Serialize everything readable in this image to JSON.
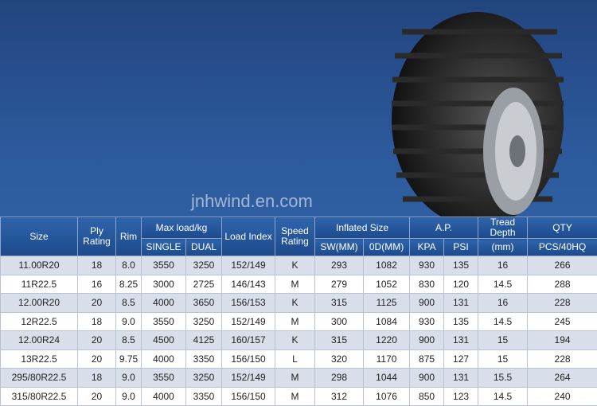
{
  "watermark": "jnhwind.en.com",
  "table": {
    "header": {
      "size": "Size",
      "ply": "Ply Rating",
      "rim": "Rim",
      "max_load": "Max load/kg",
      "single": "SINGLE",
      "dual": "DUAL",
      "load_index": "Load Index",
      "speed": "Speed Rating",
      "inflated": "Inflated Size",
      "sw": "SW(MM)",
      "od": "0D(MM)",
      "ap": "A.P.",
      "kpa": "KPA",
      "psi": "PSI",
      "tread": "Tread Depth",
      "tread_unit": "(mm)",
      "qty": "QTY",
      "qty_unit": "PCS/40HQ"
    },
    "rows": [
      [
        "11.00R20",
        "18",
        "8.0",
        "3550",
        "3250",
        "152/149",
        "K",
        "293",
        "1082",
        "930",
        "135",
        "16",
        "266"
      ],
      [
        "11R22.5",
        "16",
        "8.25",
        "3000",
        "2725",
        "146/143",
        "M",
        "279",
        "1052",
        "830",
        "120",
        "14.5",
        "288"
      ],
      [
        "12.00R20",
        "20",
        "8.5",
        "4000",
        "3650",
        "156/153",
        "K",
        "315",
        "1125",
        "900",
        "131",
        "16",
        "228"
      ],
      [
        "12R22.5",
        "18",
        "9.0",
        "3550",
        "3250",
        "152/149",
        "M",
        "300",
        "1084",
        "930",
        "135",
        "14.5",
        "245"
      ],
      [
        "12.00R24",
        "20",
        "8.5",
        "4500",
        "4125",
        "160/157",
        "K",
        "315",
        "1220",
        "900",
        "131",
        "15",
        "194"
      ],
      [
        "13R22.5",
        "20",
        "9.75",
        "4000",
        "3350",
        "156/150",
        "L",
        "320",
        "1170",
        "875",
        "127",
        "15",
        "228"
      ],
      [
        "295/80R22.5",
        "18",
        "9.0",
        "3550",
        "3250",
        "152/149",
        "M",
        "298",
        "1044",
        "900",
        "131",
        "15.5",
        "264"
      ],
      [
        "315/80R22.5",
        "20",
        "9.0",
        "4000",
        "3350",
        "156/150",
        "M",
        "312",
        "1076",
        "850",
        "123",
        "14.5",
        "240"
      ]
    ]
  }
}
